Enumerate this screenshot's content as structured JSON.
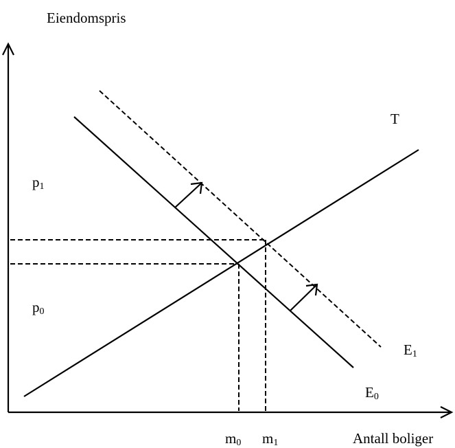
{
  "axes": {
    "y_label": "Eiendomspris",
    "x_label": "Antall boliger"
  },
  "curves": {
    "supply": "T",
    "demand_new": {
      "base": "E",
      "sub": "1"
    },
    "demand_old": {
      "base": "E",
      "sub": "0"
    }
  },
  "prices": [
    {
      "base": "p",
      "sub": "1"
    },
    {
      "base": "p",
      "sub": "0"
    }
  ],
  "quantities": [
    {
      "base": "m",
      "sub": "0"
    },
    {
      "base": "m",
      "sub": "1"
    }
  ]
}
